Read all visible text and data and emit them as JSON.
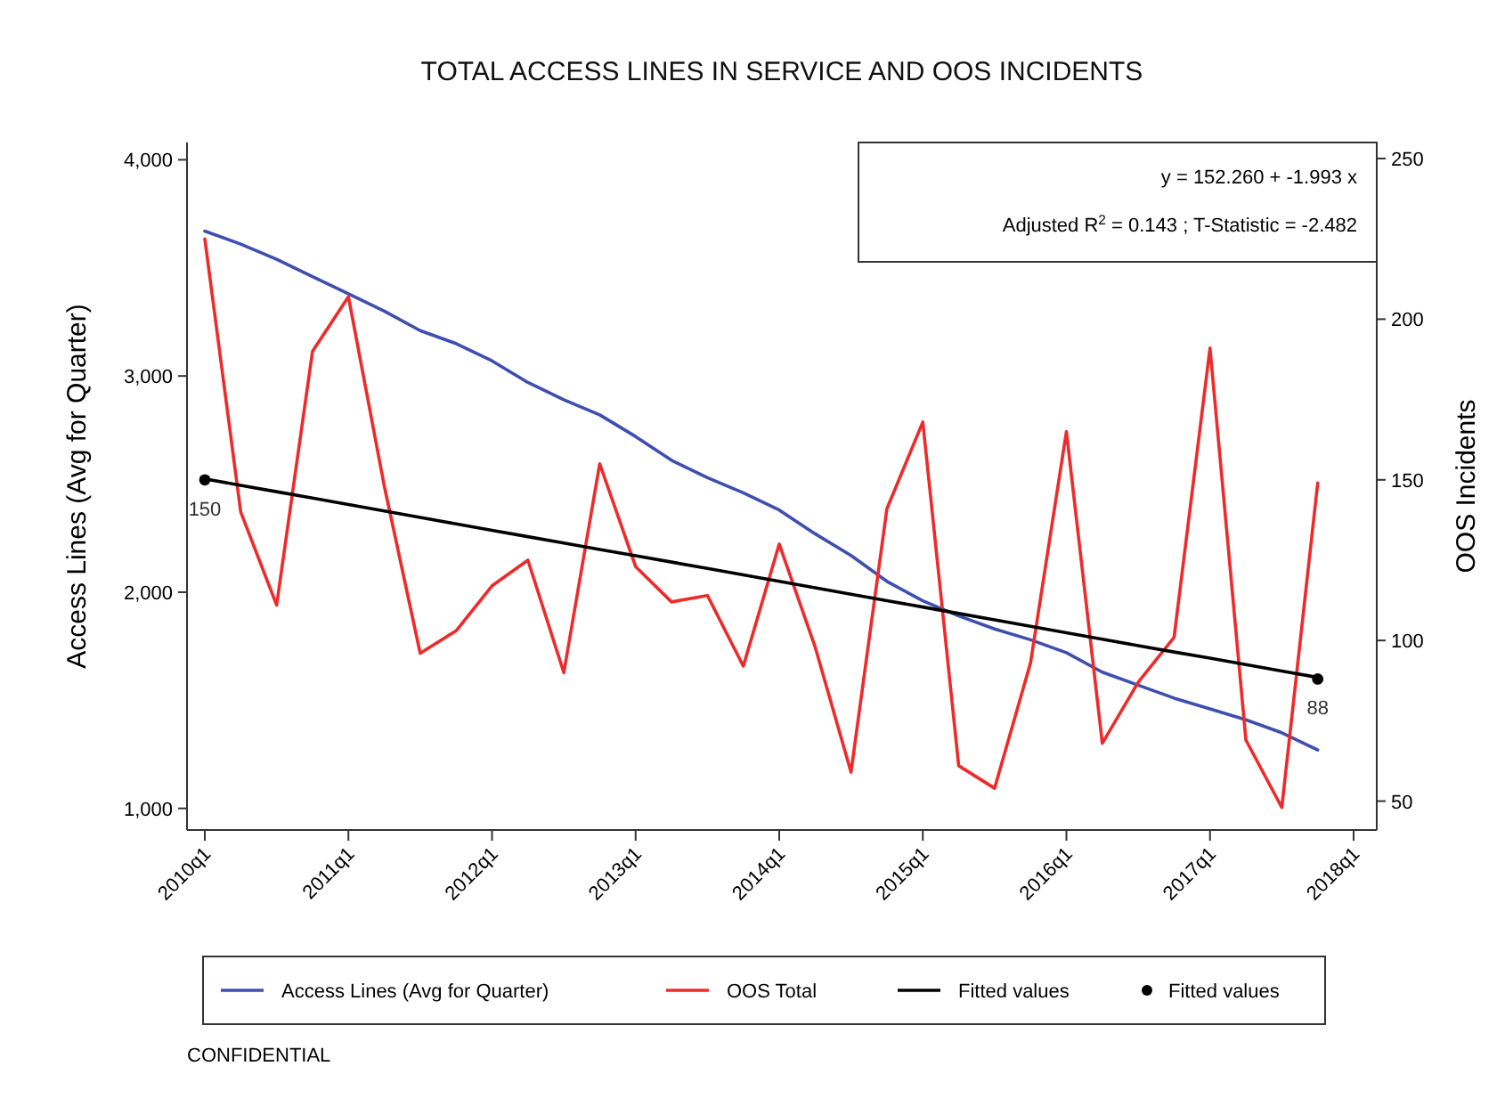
{
  "chart_data": {
    "type": "line",
    "title": "TOTAL ACCESS LINES IN SERVICE AND OOS INCIDENTS",
    "ylabel": "Access Lines (Avg for Quarter)",
    "y2label": "OOS Incidents",
    "categories": [
      "2010q1",
      null,
      null,
      null,
      "2011q1",
      null,
      null,
      null,
      "2012q1",
      null,
      null,
      null,
      "2013q1",
      null,
      null,
      null,
      "2014q1",
      null,
      null,
      null,
      "2015q1",
      null,
      null,
      null,
      "2016q1",
      null,
      null,
      null,
      "2017q1",
      null,
      null,
      null,
      "2018q1"
    ],
    "ylim": [
      900,
      4080
    ],
    "yticks": [
      {
        "value": 1000,
        "label": "1,000"
      },
      {
        "value": 2000,
        "label": "2,000"
      },
      {
        "value": 3000,
        "label": "3,000"
      },
      {
        "value": 4000,
        "label": "4,000"
      }
    ],
    "y2lim": [
      41,
      255
    ],
    "y2ticks": [
      50,
      100,
      150,
      200,
      250
    ],
    "series": [
      {
        "name": "Access Lines (Avg for Quarter)",
        "color": "#3f4fb0",
        "marker": "none",
        "values": [
          3670,
          3610,
          3540,
          3460,
          3380,
          3300,
          3210,
          3150,
          3070,
          2970,
          2890,
          2820,
          2720,
          2610,
          2530,
          2460,
          2380,
          2270,
          2170,
          2050,
          1960,
          1890,
          1830,
          1780,
          1720,
          1630,
          1570,
          1510,
          1460,
          1410,
          1350,
          1270,
          null
        ]
      },
      {
        "name": "OOS Total",
        "axis": "y2",
        "color": "#ee2a2a",
        "marker": "none",
        "values": [
          225,
          140,
          111,
          190,
          207,
          148,
          96,
          103,
          117,
          125,
          90,
          155,
          123,
          112,
          114,
          92,
          130,
          98,
          59,
          141,
          168,
          61,
          54,
          93,
          165,
          68,
          87,
          101,
          191,
          69,
          48,
          149,
          null
        ]
      },
      {
        "name": "Fitted values",
        "axis": "y2",
        "color": "#000000",
        "marker": "none",
        "values": [
          150.3,
          148.3,
          146.3,
          144.3,
          142.3,
          140.3,
          138.3,
          136.3,
          134.3,
          132.3,
          130.3,
          128.3,
          126.4,
          124.4,
          122.4,
          120.4,
          118.4,
          116.4,
          114.4,
          112.4,
          110.4,
          108.4,
          106.4,
          104.4,
          102.4,
          100.4,
          98.4,
          96.4,
          94.5,
          92.5,
          90.5,
          88.5,
          null
        ]
      },
      {
        "name": "Fitted values",
        "type": "scatter",
        "axis": "y2",
        "color": "#000000",
        "marker": "circle",
        "values": [
          150,
          null,
          null,
          null,
          null,
          null,
          null,
          null,
          null,
          null,
          null,
          null,
          null,
          null,
          null,
          null,
          null,
          null,
          null,
          null,
          null,
          null,
          null,
          null,
          null,
          null,
          null,
          null,
          null,
          null,
          null,
          88,
          null
        ],
        "value_labels": [
          "150",
          null,
          null,
          null,
          null,
          null,
          null,
          null,
          null,
          null,
          null,
          null,
          null,
          null,
          null,
          null,
          null,
          null,
          null,
          null,
          null,
          null,
          null,
          null,
          null,
          null,
          null,
          null,
          null,
          null,
          null,
          "88",
          null
        ]
      }
    ],
    "annotations": [
      "y = 152.260 + -1.993 x",
      "Adjusted R$^{2}$ = 0.143 ; T-Statistic = -2.482",
      "CONFIDENTIAL"
    ],
    "legend": "bottom",
    "grid": false
  }
}
